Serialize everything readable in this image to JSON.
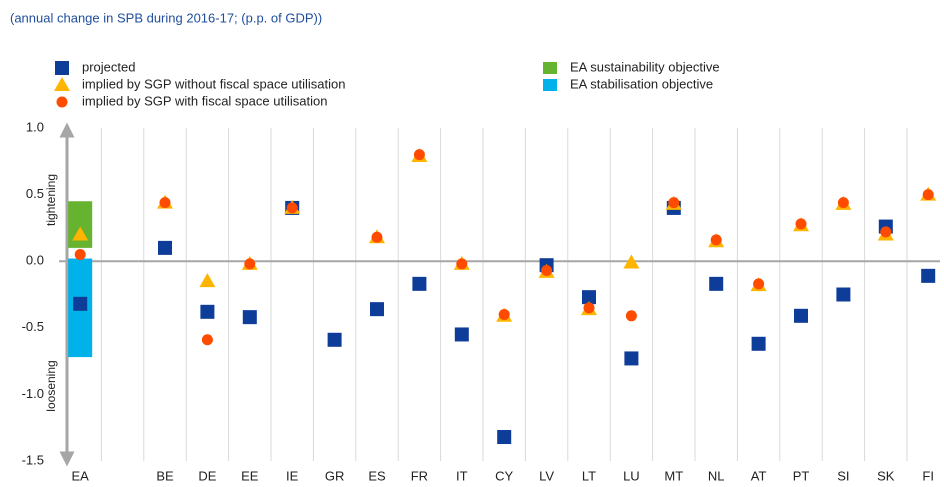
{
  "chart_data": {
    "type": "dot",
    "subtitle": "(annual change in SPB during 2016-17; (p.p. of GDP))",
    "categories": [
      "EA",
      null,
      "BE",
      "DE",
      "EE",
      "IE",
      "GR",
      "ES",
      "FR",
      "IT",
      "CY",
      "LV",
      "LT",
      "LU",
      "MT",
      "NL",
      "AT",
      "PT",
      "SI",
      "SK",
      "FI"
    ],
    "series": [
      {
        "name": "projected",
        "color": "#0d3c99",
        "marker": "square",
        "values": [
          -0.32,
          null,
          0.1,
          -0.38,
          -0.42,
          0.4,
          -0.59,
          -0.36,
          -0.17,
          -0.55,
          -1.32,
          -0.03,
          -0.27,
          -0.73,
          0.4,
          -0.17,
          -0.62,
          -0.41,
          -0.25,
          0.26,
          -0.11
        ]
      },
      {
        "name": "implied by SGP without fiscal space utilisation",
        "color": "#ffb400",
        "marker": "triangle",
        "values": [
          0.2,
          null,
          0.44,
          -0.15,
          -0.02,
          0.4,
          null,
          0.18,
          0.79,
          -0.02,
          -0.41,
          -0.08,
          -0.36,
          -0.01,
          0.43,
          0.15,
          -0.18,
          0.27,
          0.43,
          0.2,
          0.5
        ]
      },
      {
        "name": "implied by SGP with fiscal space utilisation",
        "color": "#ff4b00",
        "marker": "circle",
        "values": [
          0.05,
          null,
          0.44,
          -0.59,
          -0.02,
          0.4,
          null,
          0.18,
          0.8,
          -0.02,
          -0.4,
          -0.07,
          -0.35,
          -0.41,
          0.44,
          0.16,
          -0.17,
          0.28,
          0.44,
          0.22,
          0.5
        ]
      }
    ],
    "ranges": [
      {
        "name": "EA sustainability objective",
        "color": "#65b32e",
        "category": "EA",
        "low": 0.1,
        "high": 0.45
      },
      {
        "name": "EA stabilisation objective",
        "color": "#00b1ea",
        "category": "EA",
        "low": -0.72,
        "high": 0.02
      }
    ],
    "annotations": {
      "up": "tightening",
      "down": "loosening"
    },
    "ylim": [
      -1.5,
      1.0
    ],
    "yticks": [
      {
        "value": 1.0,
        "label": "1.0"
      },
      0.5,
      {
        "value": 0.0,
        "label": "0.0"
      },
      -0.5,
      {
        "value": -1.0,
        "label": "-1.0"
      },
      -1.5
    ]
  }
}
